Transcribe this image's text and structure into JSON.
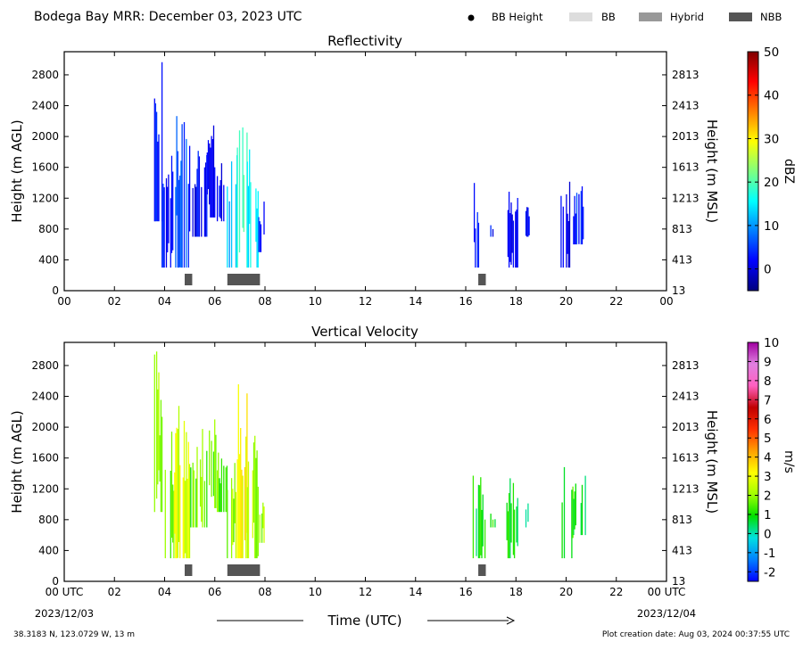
{
  "header": {
    "title": "Bodega Bay MRR:  December 03, 2023 UTC",
    "legend": [
      {
        "label": "BB Height",
        "icon": "dot-marker",
        "color": "#000000"
      },
      {
        "label": "BB",
        "icon": "swatch",
        "color": "#dddddd"
      },
      {
        "label": "Hybrid",
        "icon": "swatch",
        "color": "#999999"
      },
      {
        "label": "NBB",
        "icon": "swatch",
        "color": "#555555"
      }
    ]
  },
  "footer": {
    "location": "38.3183 N, 123.0729 W, 13 m",
    "creation": "Plot creation date: Aug 03, 2024 00:37:55 UTC",
    "xlabel": "Time (UTC)",
    "date_start": "2023/12/03",
    "date_end": "2023/12/04"
  },
  "chart_data": [
    {
      "type": "heatmap",
      "title": "Reflectivity",
      "ylabel": "Height (m AGL)",
      "ylabel_right": "Height (m MSL)",
      "xlim": [
        0,
        24
      ],
      "ylim": [
        0,
        3100
      ],
      "x_ticks": [
        "00",
        "02",
        "04",
        "06",
        "08",
        "10",
        "12",
        "14",
        "16",
        "18",
        "20",
        "22",
        "00"
      ],
      "y_ticks": [
        0,
        400,
        800,
        1200,
        1600,
        2000,
        2400,
        2800
      ],
      "y_ticks_right": [
        13,
        413,
        813,
        1213,
        1613,
        2013,
        2413,
        2813
      ],
      "colorbar": {
        "label": "dBZ",
        "min": -5,
        "max": 50,
        "ticks": [
          0,
          10,
          20,
          30,
          40,
          50
        ],
        "colors": [
          "#00007f",
          "#0000ff",
          "#007fff",
          "#00ffff",
          "#7fff7f",
          "#ffff00",
          "#ff7f00",
          "#ff0000",
          "#7f0000"
        ]
      },
      "echo_segments": [
        {
          "t0": 3.6,
          "t1": 3.9,
          "top": 3000,
          "base": 900,
          "value": 3
        },
        {
          "t0": 3.9,
          "t1": 4.4,
          "top": 2100,
          "base": 300,
          "value": 3
        },
        {
          "t0": 4.4,
          "t1": 5.0,
          "top": 2300,
          "base": 300,
          "value": 6
        },
        {
          "t0": 5.0,
          "t1": 5.7,
          "top": 2000,
          "base": 700,
          "value": 2
        },
        {
          "t0": 5.7,
          "t1": 6.1,
          "top": 2150,
          "base": 950,
          "value": 2
        },
        {
          "t0": 6.1,
          "t1": 6.5,
          "top": 1700,
          "base": 900,
          "value": 2
        },
        {
          "t0": 6.5,
          "t1": 6.9,
          "top": 1800,
          "base": 300,
          "value": 12
        },
        {
          "t0": 6.9,
          "t1": 7.3,
          "top": 2600,
          "base": 300,
          "value": 20
        },
        {
          "t0": 7.3,
          "t1": 7.75,
          "top": 1900,
          "base": 300,
          "value": 15
        },
        {
          "t0": 7.75,
          "t1": 8.0,
          "top": 1300,
          "base": 500,
          "value": 4
        },
        {
          "t0": 16.3,
          "t1": 16.8,
          "top": 1400,
          "base": 300,
          "value": 2
        },
        {
          "t0": 17.0,
          "t1": 17.2,
          "top": 900,
          "base": 700,
          "value": 2
        },
        {
          "t0": 17.6,
          "t1": 18.1,
          "top": 1500,
          "base": 300,
          "value": 1
        },
        {
          "t0": 18.4,
          "t1": 18.55,
          "top": 1100,
          "base": 700,
          "value": 1
        },
        {
          "t0": 19.8,
          "t1": 20.3,
          "top": 1500,
          "base": 300,
          "value": 2
        },
        {
          "t0": 20.3,
          "t1": 20.8,
          "top": 1400,
          "base": 600,
          "value": 4
        }
      ],
      "bright_band": [
        {
          "t0": 4.8,
          "t1": 5.1,
          "type": "NBB"
        },
        {
          "t0": 6.5,
          "t1": 7.8,
          "type": "NBB"
        },
        {
          "t0": 16.5,
          "t1": 16.8,
          "type": "NBB"
        }
      ]
    },
    {
      "type": "heatmap",
      "title": "Vertical Velocity",
      "ylabel": "Height (m AGL)",
      "ylabel_right": "Height (m MSL)",
      "xlim": [
        0,
        24
      ],
      "ylim": [
        0,
        3100
      ],
      "x_ticks": [
        "00 UTC",
        "02",
        "04",
        "06",
        "08",
        "10",
        "12",
        "14",
        "16",
        "18",
        "20",
        "22",
        "00 UTC"
      ],
      "y_ticks": [
        0,
        400,
        800,
        1200,
        1600,
        2000,
        2400,
        2800
      ],
      "y_ticks_right": [
        13,
        413,
        813,
        1213,
        1613,
        2013,
        2413,
        2813
      ],
      "colorbar": {
        "label": "m/s",
        "min": -2.5,
        "max": 10,
        "ticks": [
          -2,
          -1,
          0,
          1,
          2,
          3,
          4,
          5,
          6,
          7,
          8,
          9,
          10
        ],
        "colors": [
          "#0000ff",
          "#0080ff",
          "#00e0e0",
          "#00e000",
          "#a0ff00",
          "#ffff00",
          "#ffa000",
          "#ff3000",
          "#c00000",
          "#ff60c0",
          "#e080e0",
          "#a000a0"
        ]
      },
      "echo_segments": [
        {
          "t0": 3.6,
          "t1": 3.9,
          "top": 3000,
          "base": 900,
          "value": 2.2
        },
        {
          "t0": 3.9,
          "t1": 4.4,
          "top": 2100,
          "base": 300,
          "value": 1.8
        },
        {
          "t0": 4.4,
          "t1": 5.0,
          "top": 2300,
          "base": 300,
          "value": 2.8
        },
        {
          "t0": 5.0,
          "t1": 5.7,
          "top": 2000,
          "base": 700,
          "value": 1.6
        },
        {
          "t0": 5.7,
          "t1": 6.1,
          "top": 2150,
          "base": 950,
          "value": 1.7
        },
        {
          "t0": 6.1,
          "t1": 6.5,
          "top": 1700,
          "base": 900,
          "value": 1.5
        },
        {
          "t0": 6.5,
          "t1": 6.9,
          "top": 1800,
          "base": 300,
          "value": 2.0
        },
        {
          "t0": 6.9,
          "t1": 7.3,
          "top": 2600,
          "base": 300,
          "value": 3.2
        },
        {
          "t0": 7.3,
          "t1": 7.75,
          "top": 1900,
          "base": 300,
          "value": 2.2
        },
        {
          "t0": 7.75,
          "t1": 8.0,
          "top": 1300,
          "base": 500,
          "value": 2.0
        },
        {
          "t0": 16.3,
          "t1": 16.8,
          "top": 1400,
          "base": 300,
          "value": 0.9
        },
        {
          "t0": 17.0,
          "t1": 17.2,
          "top": 900,
          "base": 700,
          "value": 1.0
        },
        {
          "t0": 17.6,
          "t1": 18.1,
          "top": 1500,
          "base": 300,
          "value": 0.8
        },
        {
          "t0": 18.4,
          "t1": 18.55,
          "top": 1100,
          "base": 700,
          "value": 0.7
        },
        {
          "t0": 19.8,
          "t1": 20.3,
          "top": 1500,
          "base": 300,
          "value": 1.2
        },
        {
          "t0": 20.3,
          "t1": 20.8,
          "top": 1400,
          "base": 600,
          "value": 0.9
        }
      ],
      "bright_band": [
        {
          "t0": 4.8,
          "t1": 5.1,
          "type": "NBB"
        },
        {
          "t0": 6.5,
          "t1": 7.8,
          "type": "NBB"
        },
        {
          "t0": 16.5,
          "t1": 16.8,
          "type": "NBB"
        }
      ]
    }
  ]
}
